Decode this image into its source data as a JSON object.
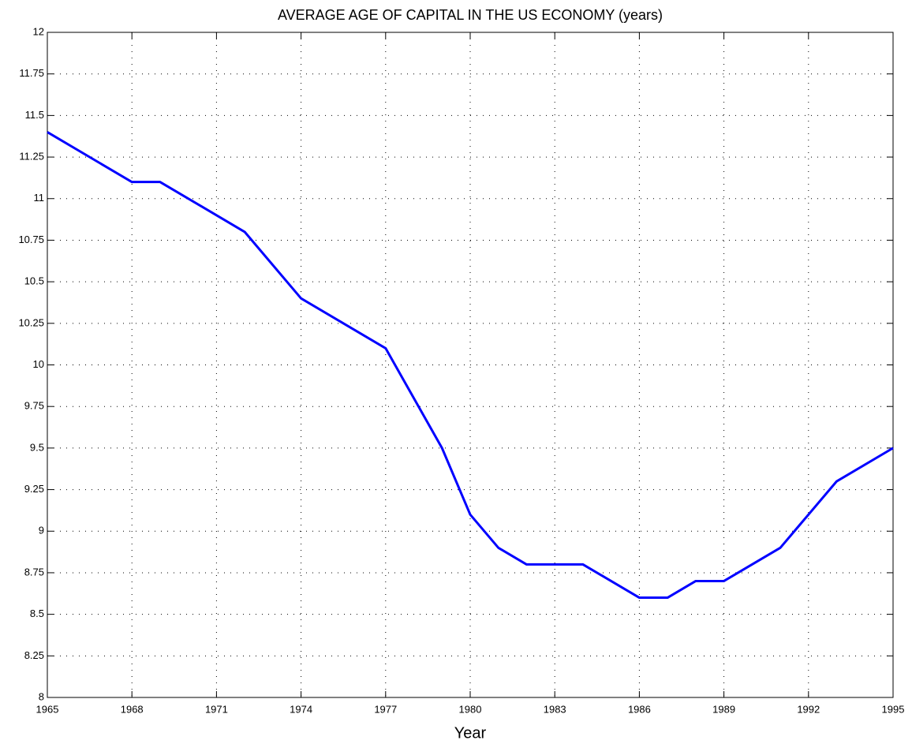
{
  "chart_data": {
    "type": "line",
    "title": "AVERAGE AGE OF CAPITAL IN THE US ECONOMY (years)",
    "x_label": "Year",
    "series": [
      {
        "color": "#0000ff",
        "x": [
          1965,
          1968,
          1969,
          1972,
          1974,
          1977,
          1979,
          1980,
          1981,
          1982,
          1984,
          1986,
          1987,
          1988,
          1989,
          1991,
          1993,
          1995
        ],
        "values": [
          11.4,
          11.1,
          11.1,
          10.8,
          10.4,
          10.1,
          9.5,
          9.1,
          8.9,
          8.8,
          8.8,
          8.6,
          8.6,
          8.7,
          8.7,
          8.9,
          9.3,
          9.5
        ]
      }
    ],
    "xlim": [
      1965,
      1995
    ],
    "xticks": [
      1965,
      1968,
      1971,
      1974,
      1977,
      1980,
      1983,
      1986,
      1989,
      1992,
      1995
    ],
    "ylim": [
      8,
      12
    ],
    "yticks": [
      8,
      8.25,
      8.5,
      8.75,
      9,
      9.25,
      9.5,
      9.75,
      10,
      10.25,
      10.5,
      10.75,
      11,
      11.25,
      11.5,
      11.75,
      12
    ],
    "grid": true
  }
}
